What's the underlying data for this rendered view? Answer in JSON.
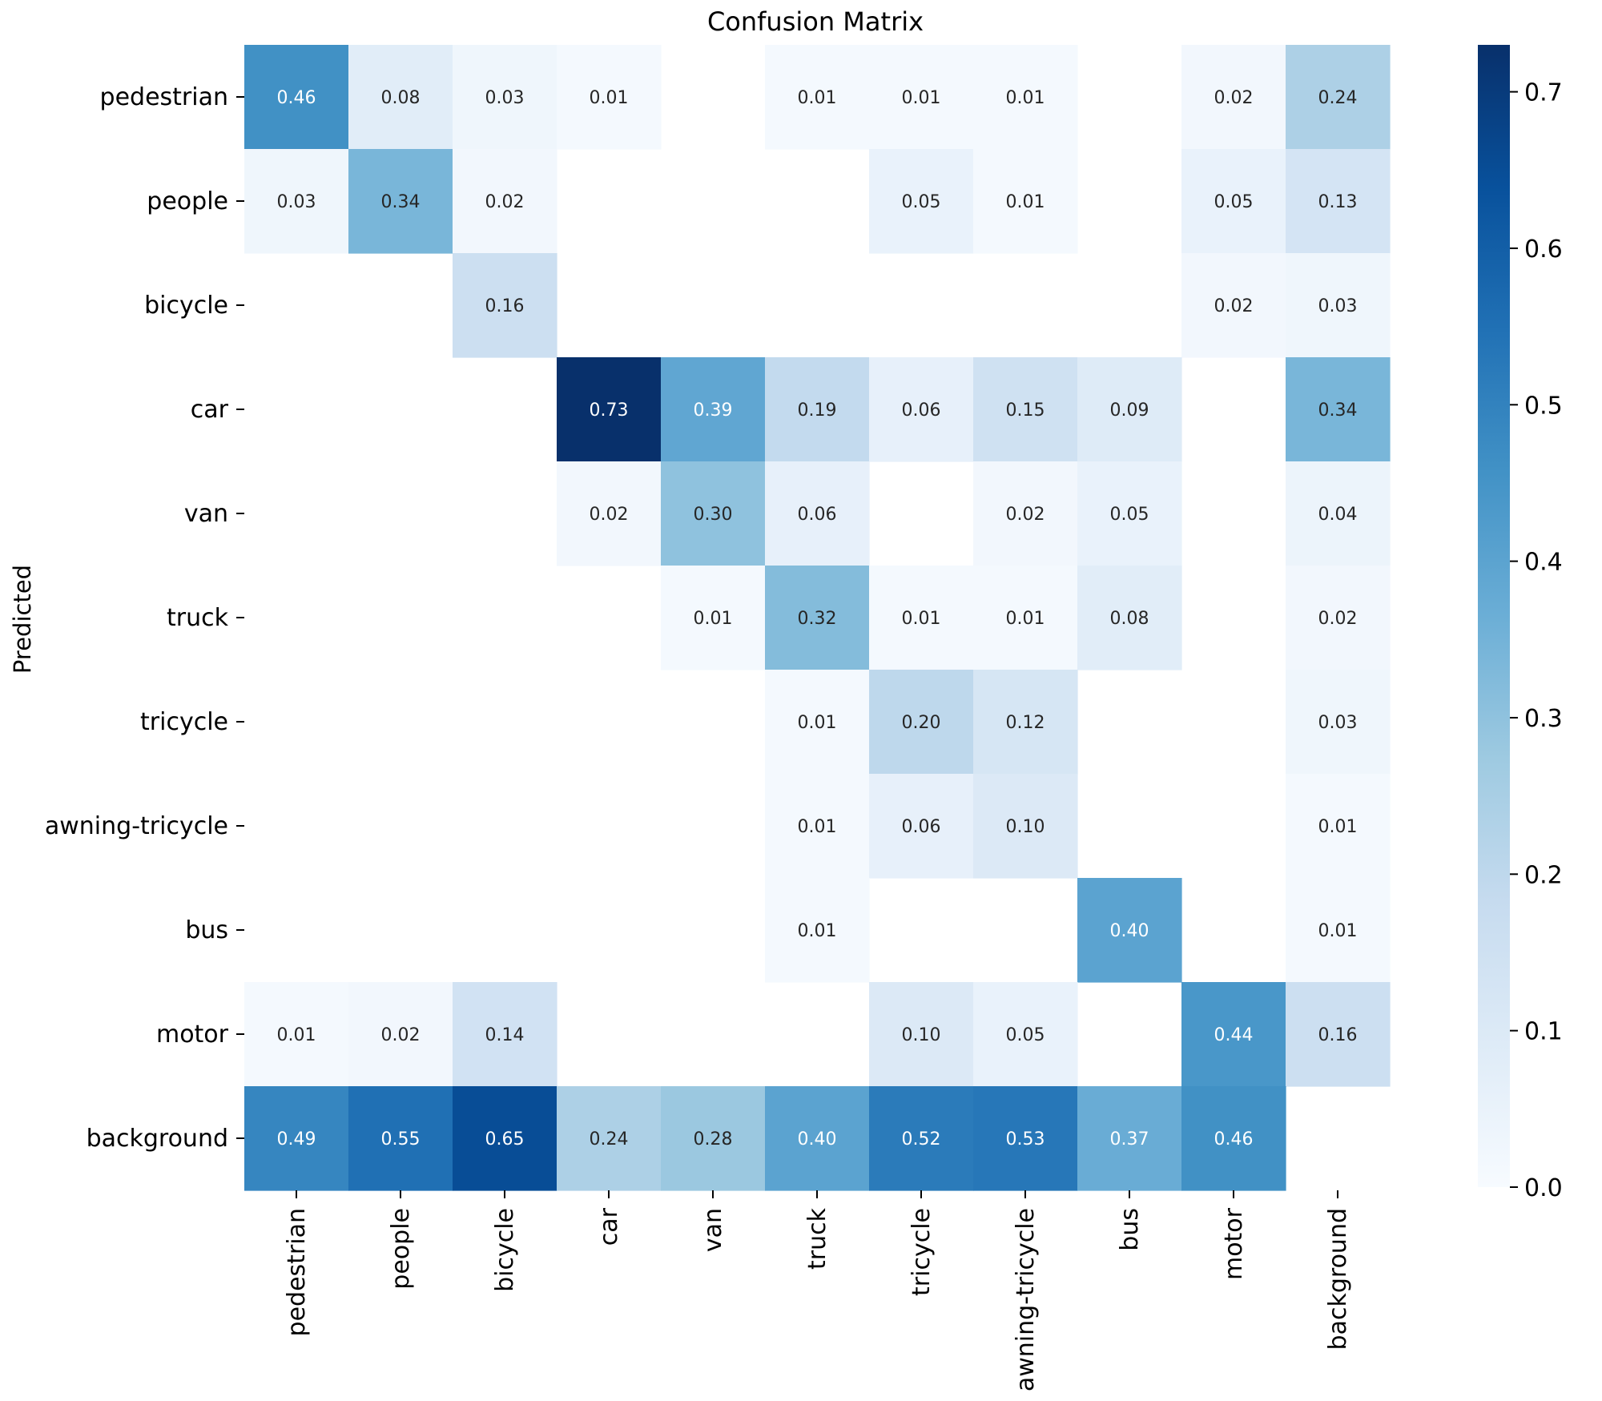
{
  "chart_data": {
    "type": "heatmap",
    "title": "Confusion Matrix",
    "xlabel": "",
    "ylabel": "Predicted",
    "x_categories": [
      "pedestrian",
      "people",
      "bicycle",
      "car",
      "van",
      "truck",
      "tricycle",
      "awning-tricycle",
      "bus",
      "motor",
      "background"
    ],
    "y_categories": [
      "pedestrian",
      "people",
      "bicycle",
      "car",
      "van",
      "truck",
      "tricycle",
      "awning-tricycle",
      "bus",
      "motor",
      "background"
    ],
    "values": [
      [
        0.46,
        0.08,
        0.03,
        0.01,
        null,
        0.01,
        0.01,
        0.01,
        null,
        0.02,
        0.24
      ],
      [
        0.03,
        0.34,
        0.02,
        null,
        null,
        null,
        0.05,
        0.01,
        null,
        0.05,
        0.13
      ],
      [
        null,
        null,
        0.16,
        null,
        null,
        null,
        null,
        null,
        null,
        0.02,
        0.03
      ],
      [
        null,
        null,
        null,
        0.73,
        0.39,
        0.19,
        0.06,
        0.15,
        0.09,
        null,
        0.34
      ],
      [
        null,
        null,
        null,
        0.02,
        0.3,
        0.06,
        null,
        0.02,
        0.05,
        null,
        0.04
      ],
      [
        null,
        null,
        null,
        null,
        0.01,
        0.32,
        0.01,
        0.01,
        0.08,
        null,
        0.02
      ],
      [
        null,
        null,
        null,
        null,
        null,
        0.01,
        0.2,
        0.12,
        null,
        null,
        0.03
      ],
      [
        null,
        null,
        null,
        null,
        null,
        0.01,
        0.06,
        0.1,
        null,
        null,
        0.01
      ],
      [
        null,
        null,
        null,
        null,
        null,
        0.01,
        null,
        null,
        0.4,
        null,
        0.01
      ],
      [
        0.01,
        0.02,
        0.14,
        null,
        null,
        null,
        0.1,
        0.05,
        null,
        0.44,
        0.16
      ],
      [
        0.49,
        0.55,
        0.65,
        0.24,
        0.28,
        0.4,
        0.52,
        0.53,
        0.37,
        0.46,
        null
      ]
    ],
    "value_format": "0.00",
    "colormap": "Blues",
    "vmin": 0.0,
    "vmax": 0.73,
    "colorbar": {
      "ticks": [
        0.0,
        0.1,
        0.2,
        0.3,
        0.4,
        0.5,
        0.6,
        0.7
      ],
      "tick_labels": [
        "0.0",
        "0.1",
        "0.2",
        "0.3",
        "0.4",
        "0.5",
        "0.6",
        "0.7"
      ]
    },
    "grid": false,
    "legend": "colorbar-right"
  }
}
